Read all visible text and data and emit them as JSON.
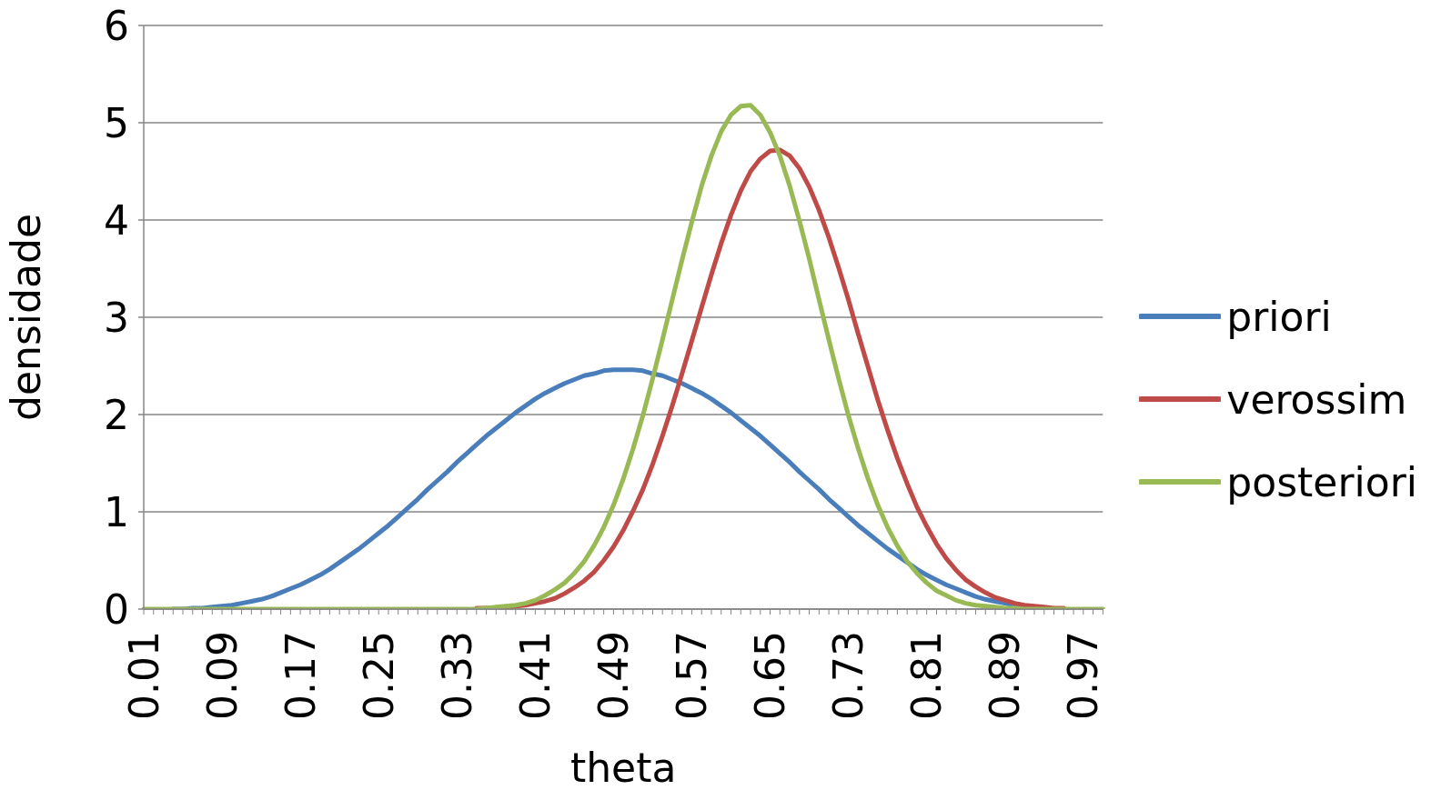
{
  "chart_data": {
    "type": "line",
    "xlabel": "theta",
    "ylabel": "densidade",
    "categories": [
      "0.01",
      null,
      null,
      null,
      null,
      null,
      null,
      null,
      "0.09",
      null,
      null,
      null,
      null,
      null,
      null,
      null,
      "0.17",
      null,
      null,
      null,
      null,
      null,
      null,
      null,
      "0.25",
      null,
      null,
      null,
      null,
      null,
      null,
      null,
      "0.33",
      null,
      null,
      null,
      null,
      null,
      null,
      null,
      "0.41",
      null,
      null,
      null,
      null,
      null,
      null,
      null,
      "0.49",
      null,
      null,
      null,
      null,
      null,
      null,
      null,
      "0.57",
      null,
      null,
      null,
      null,
      null,
      null,
      null,
      "0.65",
      null,
      null,
      null,
      null,
      null,
      null,
      null,
      "0.73",
      null,
      null,
      null,
      null,
      null,
      null,
      null,
      "0.81",
      null,
      null,
      null,
      null,
      null,
      null,
      null,
      "0.89",
      null,
      null,
      null,
      null,
      null,
      null,
      null,
      "0.97",
      null,
      null
    ],
    "series": [
      {
        "name": "priori",
        "color": "#4a7ebb",
        "values": [
          null,
          null,
          null,
          0,
          0,
          0.01,
          0.01,
          0.02,
          0.03,
          0.04,
          0.06,
          0.08,
          0.1,
          0.13,
          0.17,
          0.21,
          0.25,
          0.3,
          0.35,
          0.41,
          0.48,
          0.55,
          0.62,
          0.7,
          0.78,
          0.86,
          0.95,
          1.04,
          1.13,
          1.23,
          1.32,
          1.41,
          1.51,
          1.6,
          1.69,
          1.78,
          1.86,
          1.94,
          2.02,
          2.09,
          2.16,
          2.22,
          2.27,
          2.32,
          2.36,
          2.4,
          2.42,
          2.45,
          2.46,
          2.46,
          2.46,
          2.45,
          2.42,
          2.4,
          2.36,
          2.32,
          2.27,
          2.22,
          2.16,
          2.09,
          2.02,
          1.94,
          1.86,
          1.78,
          1.69,
          1.6,
          1.51,
          1.41,
          1.32,
          1.23,
          1.13,
          1.04,
          0.95,
          0.86,
          0.78,
          0.7,
          0.62,
          0.55,
          0.48,
          0.41,
          0.35,
          0.3,
          0.25,
          0.21,
          0.17,
          0.13,
          0.1,
          0.08,
          0.06,
          0.04,
          0.03,
          null,
          null,
          null,
          null,
          null,
          null,
          null,
          null
        ]
      },
      {
        "name": "verossim",
        "color": "#be4b48",
        "values": [
          null,
          null,
          null,
          null,
          null,
          null,
          null,
          null,
          null,
          null,
          null,
          null,
          null,
          null,
          null,
          null,
          null,
          null,
          null,
          null,
          null,
          null,
          null,
          null,
          null,
          null,
          null,
          null,
          null,
          null,
          null,
          null,
          null,
          null,
          0.01,
          0.01,
          0.01,
          0.02,
          0.03,
          0.04,
          0.06,
          0.08,
          0.11,
          0.16,
          0.22,
          0.29,
          0.38,
          0.5,
          0.64,
          0.81,
          1.01,
          1.23,
          1.49,
          1.78,
          2.09,
          2.42,
          2.76,
          3.1,
          3.44,
          3.76,
          4.05,
          4.3,
          4.5,
          4.63,
          4.71,
          4.72,
          4.66,
          4.53,
          4.34,
          4.1,
          3.82,
          3.51,
          3.18,
          2.83,
          2.49,
          2.15,
          1.84,
          1.55,
          1.29,
          1.05,
          0.85,
          0.67,
          0.52,
          0.4,
          0.3,
          0.23,
          0.17,
          0.12,
          0.09,
          0.06,
          0.04,
          0.03,
          0.02,
          0.01,
          0.01,
          null,
          null,
          null,
          null
        ]
      },
      {
        "name": "posteriori",
        "color": "#98b954",
        "values": [
          0,
          0,
          0,
          0,
          0,
          0,
          0,
          0,
          0,
          0,
          0,
          0,
          0,
          0,
          0,
          0,
          0,
          0,
          0,
          0,
          0,
          0,
          0,
          0,
          0,
          0,
          0,
          0,
          0,
          0,
          0,
          0,
          0,
          0,
          0,
          0.01,
          0.02,
          0.03,
          0.04,
          0.06,
          0.09,
          0.14,
          0.2,
          0.27,
          0.37,
          0.49,
          0.65,
          0.84,
          1.07,
          1.34,
          1.65,
          1.99,
          2.37,
          2.77,
          3.18,
          3.59,
          3.98,
          4.35,
          4.66,
          4.91,
          5.08,
          5.17,
          5.18,
          5.08,
          4.9,
          4.66,
          4.35,
          3.99,
          3.6,
          3.18,
          2.77,
          2.37,
          1.99,
          1.65,
          1.34,
          1.07,
          0.84,
          0.65,
          0.49,
          0.37,
          0.27,
          0.19,
          0.14,
          0.09,
          0.06,
          0.04,
          0.03,
          0.02,
          0.01,
          0.01,
          0,
          0,
          0,
          0,
          0,
          0,
          0,
          0,
          0
        ]
      }
    ],
    "ylim": [
      0,
      6
    ],
    "yticks": [
      0,
      1,
      2,
      3,
      4,
      5,
      6
    ],
    "grid": "y",
    "legend": "right",
    "marker": "none",
    "line_style": "solid"
  }
}
